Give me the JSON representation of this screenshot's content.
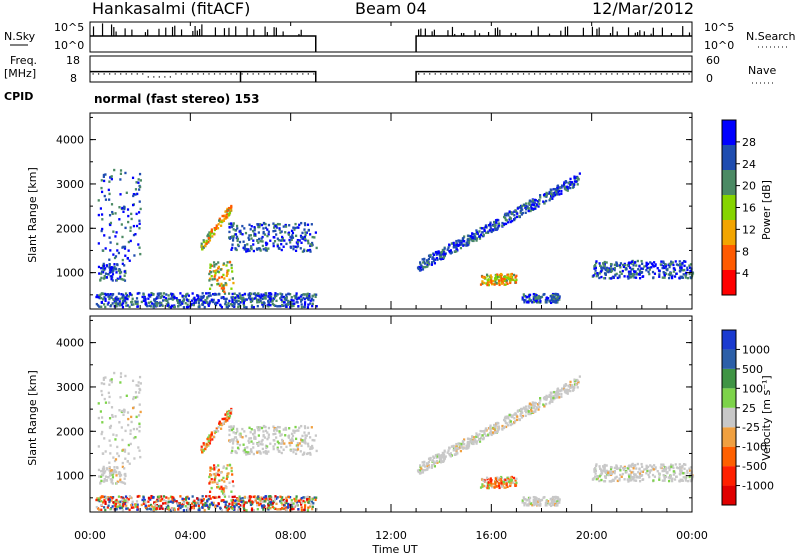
{
  "header": {
    "station": "Hankasalmi (fitACF)",
    "beam": "Beam 04",
    "date": "12/Mar/2012"
  },
  "chart_data": {
    "type": "heatmap",
    "x_axis": {
      "label": "Time UT",
      "range_hours": [
        0,
        24
      ],
      "ticks": [
        "00:00",
        "04:00",
        "08:00",
        "12:00",
        "16:00",
        "20:00",
        "00:00"
      ]
    },
    "panels": {
      "nsky": {
        "left_label": "N.Sky",
        "right_label": "N.Search",
        "left_ticks": [
          "10^5",
          "10^0"
        ],
        "right_ticks": [
          "10^5",
          "10^0"
        ]
      },
      "freq": {
        "left_label": "Freq.",
        "left_unit": "[MHz]",
        "right_label": "Nave",
        "left_ticks": [
          "18",
          "8"
        ],
        "right_ticks": [
          "60",
          "0"
        ],
        "freq_mhz": 12,
        "nave": 20
      },
      "cpid": {
        "label": "CPID",
        "text": "normal (fast stereo) 153"
      }
    },
    "range_axis": {
      "label": "Slant Range [km]",
      "range_km": [
        180,
        4600
      ],
      "ticks": [
        "1000",
        "2000",
        "3000",
        "4000"
      ]
    },
    "data_gaps_hours": [
      [
        9.0,
        13.0
      ]
    ],
    "colorbars": [
      {
        "title": "Power [dB]",
        "labels": [
          "4",
          "8",
          "12",
          "16",
          "20",
          "24",
          "28"
        ],
        "colors": [
          "#0000ff",
          "#1f4db0",
          "#4b8a64",
          "#86d400",
          "#f2a500",
          "#ff5a00",
          "#ff0000"
        ]
      },
      {
        "title": "Velocity [m s⁻¹]",
        "labels": [
          "1000",
          "500",
          "100",
          "25",
          "-25",
          "-100",
          "-500",
          "-1000"
        ],
        "colors": [
          "#1a3ad0",
          "#2c5fa8",
          "#3f9444",
          "#7dd34a",
          "#c8c8c8",
          "#f0a040",
          "#ff6000",
          "#ff2000",
          "#e00000"
        ]
      }
    ],
    "scatter_regions": [
      {
        "name": "near-range",
        "t": [
          0.2,
          9.0
        ],
        "r": [
          200,
          520
        ]
      },
      {
        "name": "morning-band",
        "t": [
          0.3,
          1.4
        ],
        "r": [
          800,
          1180
        ]
      },
      {
        "name": "early-scatter",
        "t": [
          0.3,
          2.0
        ],
        "r": [
          1200,
          3300
        ]
      },
      {
        "name": "dawn-band-low",
        "t": [
          4.7,
          5.7
        ],
        "r": [
          550,
          1250
        ]
      },
      {
        "name": "dawn-band-high",
        "t": [
          4.4,
          5.6
        ],
        "r": [
          1550,
          2500
        ]
      },
      {
        "name": "morning-echo",
        "t": [
          5.5,
          9.0
        ],
        "r": [
          1450,
          2100
        ]
      },
      {
        "name": "afternoon-ramp",
        "t": [
          13.0,
          19.5
        ],
        "r": [
          1100,
          3150
        ]
      },
      {
        "name": "afternoon-patch",
        "t": [
          15.5,
          17.0
        ],
        "r": [
          700,
          950
        ]
      },
      {
        "name": "afternoon-patch-2",
        "t": [
          17.2,
          18.7
        ],
        "r": [
          300,
          500
        ]
      },
      {
        "name": "evening-band",
        "t": [
          20.0,
          24.0
        ],
        "r": [
          850,
          1250
        ]
      }
    ]
  }
}
